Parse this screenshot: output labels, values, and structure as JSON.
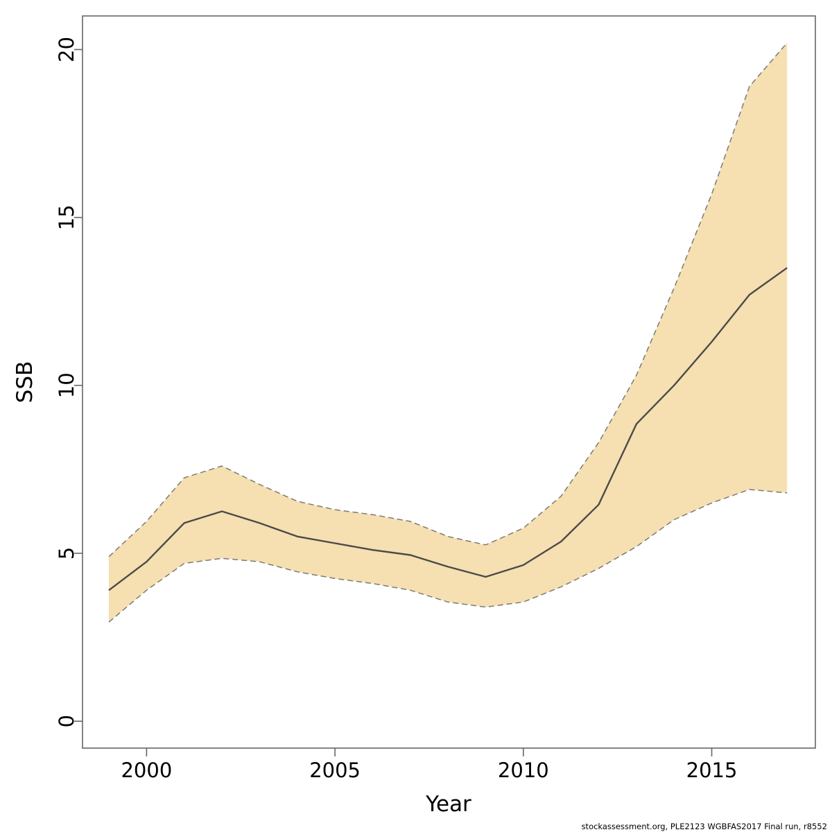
{
  "footer": "stockassessment.org, PLE2123 WGBFAS2017 Final run, r8552",
  "chart_data": {
    "type": "line",
    "title": "",
    "xlabel": "Year",
    "ylabel": "SSB",
    "x": [
      1999,
      2000,
      2001,
      2002,
      2003,
      2004,
      2005,
      2006,
      2007,
      2008,
      2009,
      2010,
      2011,
      2012,
      2013,
      2014,
      2015,
      2016,
      2017
    ],
    "series": [
      {
        "name": "SSB estimate",
        "role": "center",
        "values": [
          3.9,
          4.75,
          5.9,
          6.25,
          5.9,
          5.5,
          5.3,
          5.1,
          4.95,
          4.6,
          4.3,
          4.65,
          5.35,
          6.45,
          8.85,
          10.0,
          11.3,
          12.7,
          13.5
        ]
      },
      {
        "name": "95% CI lower",
        "role": "lower",
        "values": [
          2.95,
          3.9,
          4.7,
          4.85,
          4.75,
          4.45,
          4.25,
          4.1,
          3.9,
          3.55,
          3.4,
          3.55,
          4.0,
          4.55,
          5.2,
          6.0,
          6.5,
          6.9,
          6.8
        ]
      },
      {
        "name": "95% CI upper",
        "role": "upper",
        "values": [
          4.9,
          5.95,
          7.25,
          7.6,
          7.05,
          6.55,
          6.3,
          6.15,
          5.95,
          5.5,
          5.25,
          5.75,
          6.7,
          8.3,
          10.3,
          12.9,
          15.7,
          18.9,
          20.2
        ]
      }
    ],
    "xlim": [
      1998.3,
      2017.75
    ],
    "ylim": [
      -0.8,
      21.0
    ],
    "xticks": [
      2000,
      2005,
      2010,
      2015
    ],
    "yticks": [
      0,
      5,
      10,
      15,
      20
    ],
    "grid": false,
    "legend": "none",
    "colors": {
      "band_fill": "#F6DFB0",
      "band_edge": "#7A7A7A",
      "center_line": "#4A4A4A",
      "axis": "#666666",
      "text": "#000000"
    }
  }
}
